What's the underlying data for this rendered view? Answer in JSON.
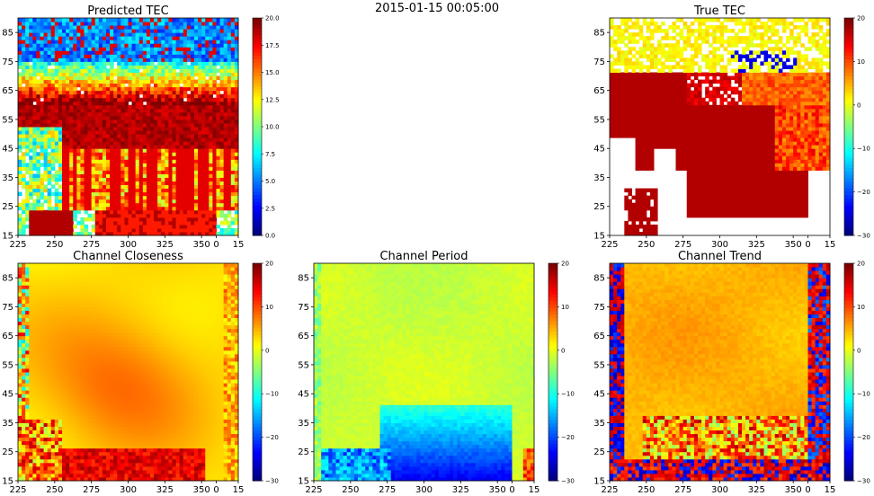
{
  "figure": {
    "suptitle": "2015-01-15 00:05:00"
  },
  "colormaps": {
    "jet": [
      "#00007f",
      "#0000ff",
      "#007fff",
      "#00ffff",
      "#7fff7f",
      "#ffff00",
      "#ff7f00",
      "#ff0000",
      "#7f0000"
    ]
  },
  "chart_data": [
    {
      "type": "heatmap",
      "title": "Predicted TEC",
      "x_ticks": [
        "225",
        "250",
        "275",
        "300",
        "325",
        "350",
        "0",
        "15"
      ],
      "y_ticks": [
        "15",
        "25",
        "35",
        "45",
        "55",
        "65",
        "75",
        "85"
      ],
      "xlim": [
        225,
        375
      ],
      "ylim": [
        15,
        90
      ],
      "colorbar": {
        "vmin": 0,
        "vmax": 20,
        "ticks": [
          "0.0",
          "2.5",
          "5.0",
          "7.5",
          "10.0",
          "12.5",
          "15.0",
          "17.5",
          "20.0"
        ]
      },
      "pattern": "predicted"
    },
    {
      "type": "heatmap",
      "title": "True TEC",
      "x_ticks": [
        "225",
        "250",
        "275",
        "300",
        "325",
        "350",
        "0",
        "15"
      ],
      "y_ticks": [
        "15",
        "25",
        "35",
        "45",
        "55",
        "65",
        "75",
        "85"
      ],
      "xlim": [
        225,
        375
      ],
      "ylim": [
        15,
        90
      ],
      "colorbar": {
        "vmin": -30,
        "vmax": 20,
        "ticks": [
          "−30",
          "−20",
          "−10",
          "0",
          "10",
          "20"
        ]
      },
      "pattern": "true"
    },
    {
      "type": "heatmap",
      "title": "Channel Closeness",
      "x_ticks": [
        "225",
        "250",
        "275",
        "300",
        "325",
        "350",
        "0",
        "15"
      ],
      "y_ticks": [
        "15",
        "25",
        "35",
        "45",
        "55",
        "65",
        "75",
        "85"
      ],
      "xlim": [
        225,
        375
      ],
      "ylim": [
        15,
        90
      ],
      "colorbar": {
        "vmin": -30,
        "vmax": 20,
        "ticks": [
          "−30",
          "−20",
          "−10",
          "0",
          "10",
          "20"
        ]
      },
      "pattern": "closeness"
    },
    {
      "type": "heatmap",
      "title": "Channel Period",
      "x_ticks": [
        "225",
        "250",
        "275",
        "300",
        "325",
        "350",
        "0",
        "15"
      ],
      "y_ticks": [
        "15",
        "25",
        "35",
        "45",
        "55",
        "65",
        "75",
        "85"
      ],
      "xlim": [
        225,
        375
      ],
      "ylim": [
        15,
        90
      ],
      "colorbar": {
        "vmin": -30,
        "vmax": 20,
        "ticks": [
          "−30",
          "−20",
          "−10",
          "0",
          "10",
          "20"
        ]
      },
      "pattern": "period"
    },
    {
      "type": "heatmap",
      "title": "Channel Trend",
      "x_ticks": [
        "225",
        "250",
        "275",
        "300",
        "325",
        "350",
        "0",
        "15"
      ],
      "y_ticks": [
        "15",
        "25",
        "35",
        "45",
        "55",
        "65",
        "75",
        "85"
      ],
      "xlim": [
        225,
        375
      ],
      "ylim": [
        15,
        90
      ],
      "colorbar": {
        "vmin": -30,
        "vmax": 20,
        "ticks": [
          "−30",
          "−20",
          "−10",
          "0",
          "10",
          "20"
        ]
      },
      "pattern": "trend"
    }
  ]
}
